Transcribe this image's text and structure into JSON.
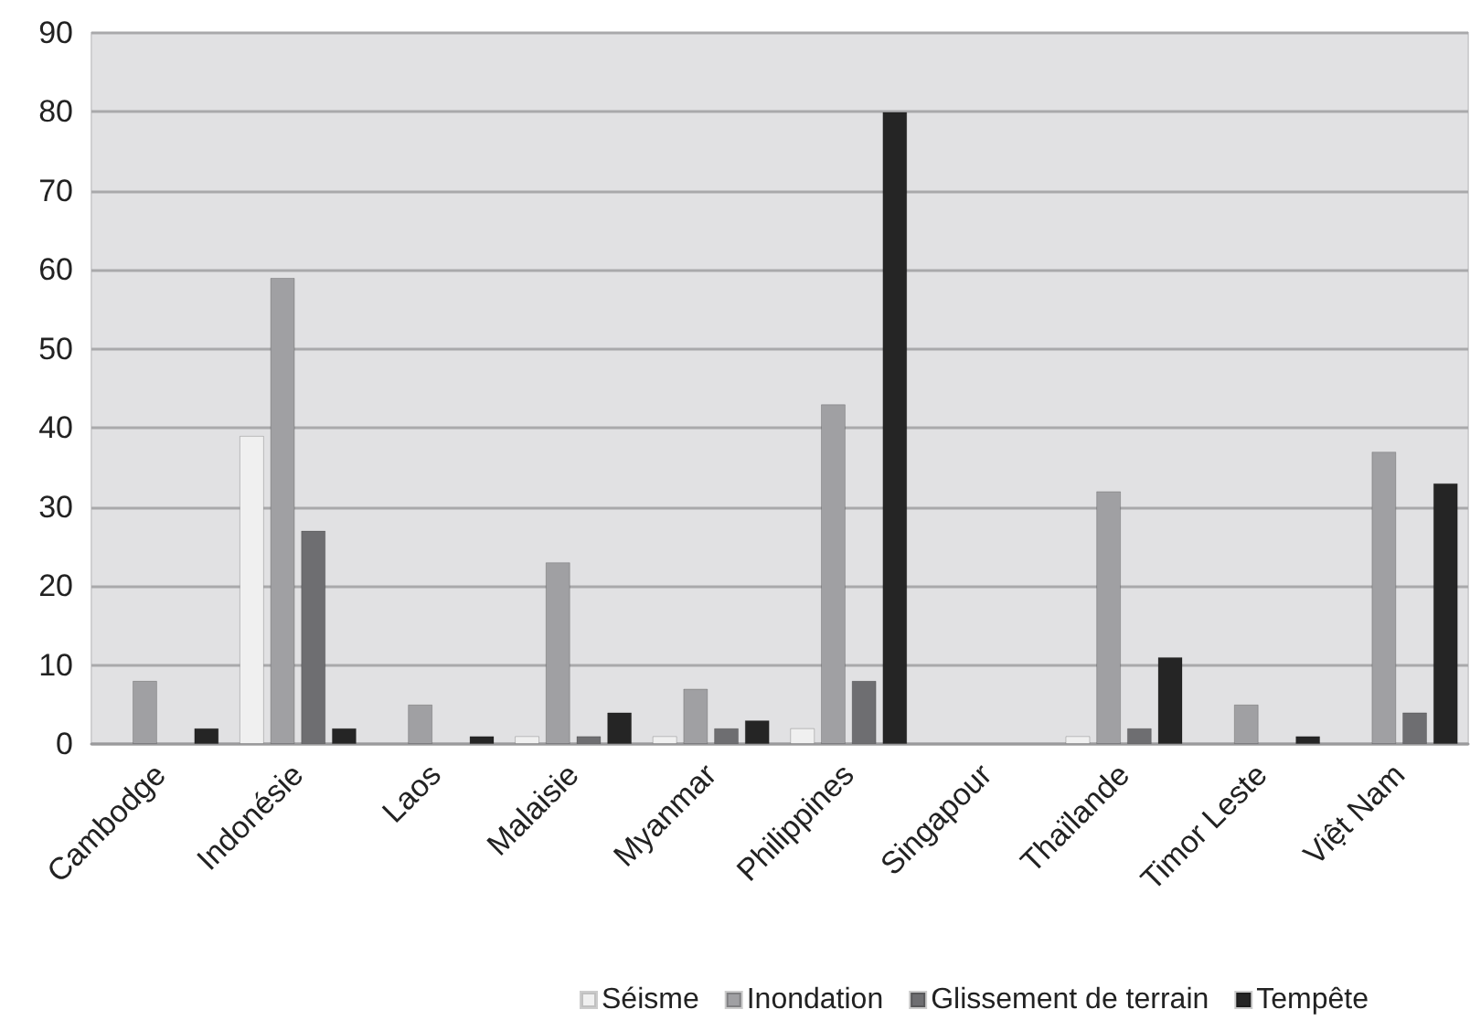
{
  "chart_data": {
    "type": "bar",
    "categories": [
      "Cambodge",
      "Indonésie",
      "Laos",
      "Malaisie",
      "Myanmar",
      "Philippines",
      "Singapour",
      "Thaïlande",
      "Timor Leste",
      "Việt Nam"
    ],
    "series": [
      {
        "name": "Séisme",
        "color": "#f0f0f0",
        "values": [
          null,
          39,
          null,
          1,
          1,
          2,
          null,
          1,
          null,
          null
        ]
      },
      {
        "name": "Inondation",
        "color": "#a0a0a3",
        "values": [
          8,
          59,
          5,
          23,
          7,
          43,
          null,
          32,
          5,
          37
        ]
      },
      {
        "name": "Glissement de terrain",
        "color": "#6e6e71",
        "values": [
          null,
          27,
          null,
          1,
          2,
          8,
          null,
          2,
          null,
          4
        ]
      },
      {
        "name": "Tempête",
        "color": "#252525",
        "values": [
          2,
          2,
          1,
          4,
          3,
          80,
          null,
          11,
          1,
          33
        ]
      }
    ],
    "ylim": [
      0,
      90
    ],
    "yticks": [
      0,
      10,
      20,
      30,
      40,
      50,
      60,
      70,
      80,
      90
    ],
    "grid": "y",
    "legend": "bottom"
  }
}
